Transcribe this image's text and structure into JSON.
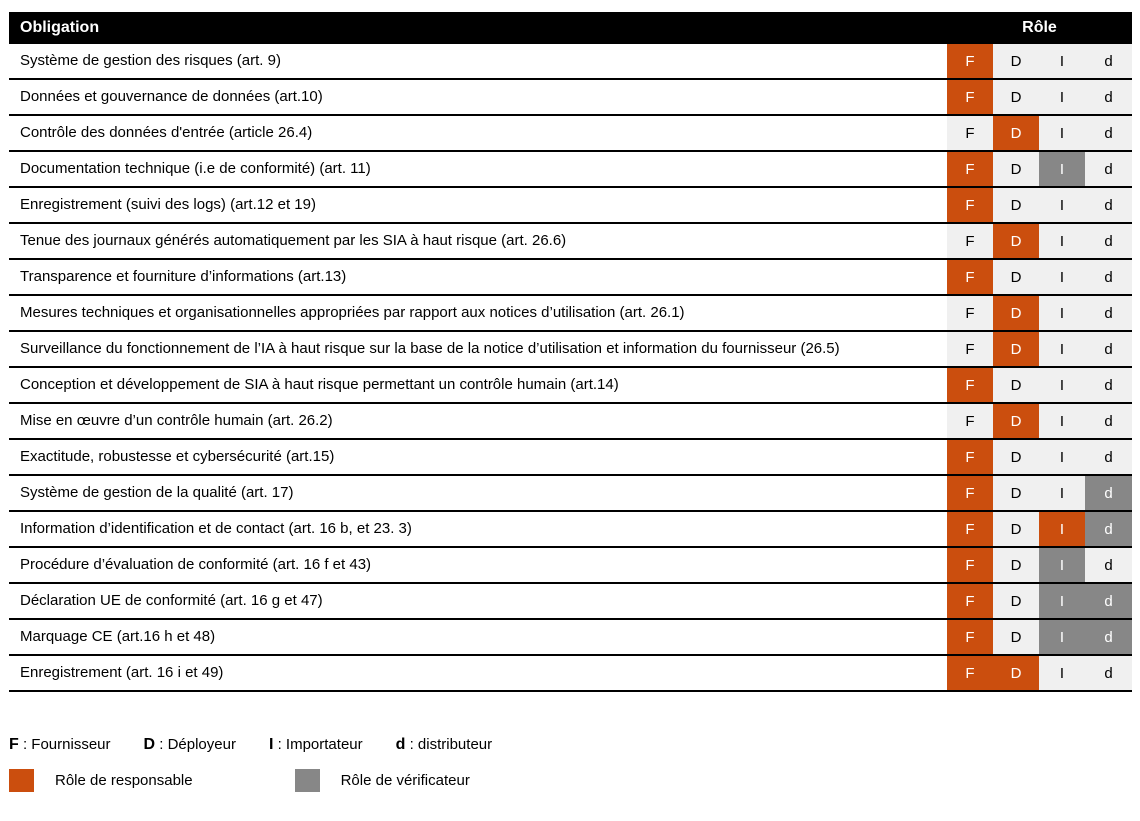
{
  "header": {
    "obligation": "Obligation",
    "role": "Rôle"
  },
  "columns": [
    "F",
    "D",
    "I",
    "d"
  ],
  "rows": [
    {
      "obligation": "Système de gestion des risques (art. 9)",
      "cells": [
        "resp",
        "none",
        "none",
        "none"
      ]
    },
    {
      "obligation": "Données et gouvernance de données  (art.10)",
      "cells": [
        "resp",
        "none",
        "none",
        "none"
      ]
    },
    {
      "obligation": "Contrôle des données d'entrée (article 26.4)",
      "cells": [
        "none",
        "resp",
        "none",
        "none"
      ]
    },
    {
      "obligation": "Documentation technique (i.e de conformité) (art. 11)",
      "cells": [
        "resp",
        "none",
        "verif",
        "none"
      ]
    },
    {
      "obligation": "Enregistrement (suivi des logs) (art.12 et 19)",
      "cells": [
        "resp",
        "none",
        "none",
        "none"
      ]
    },
    {
      "obligation": "Tenue des journaux générés automatiquement par les SIA à haut risque (art. 26.6)",
      "cells": [
        "none",
        "resp",
        "none",
        "none"
      ]
    },
    {
      "obligation": "Transparence et fourniture d’informations (art.13)",
      "cells": [
        "resp",
        "none",
        "none",
        "none"
      ]
    },
    {
      "obligation": "Mesures techniques et organisationnelles appropriées par rapport aux notices d’utilisation (art. 26.1)",
      "cells": [
        "none",
        "resp",
        "none",
        "none"
      ]
    },
    {
      "obligation": "Surveillance du fonctionnement de l’IA à haut risque sur la base de la notice d’utilisation et information du fournisseur (26.5)",
      "cells": [
        "none",
        "resp",
        "none",
        "none"
      ]
    },
    {
      "obligation": "Conception et développement de SIA à haut risque permettant un contrôle humain (art.14)",
      "cells": [
        "resp",
        "none",
        "none",
        "none"
      ]
    },
    {
      "obligation": "Mise en œuvre d’un contrôle humain (art. 26.2)",
      "cells": [
        "none",
        "resp",
        "none",
        "none"
      ]
    },
    {
      "obligation": "Exactitude, robustesse et cybersécurité (art.15)",
      "cells": [
        "resp",
        "none",
        "none",
        "none"
      ]
    },
    {
      "obligation": "Système de gestion de la qualité (art. 17)",
      "cells": [
        "resp",
        "none",
        "none",
        "verif"
      ]
    },
    {
      "obligation": "Information d’identification et de contact (art. 16 b, et 23. 3)",
      "cells": [
        "resp",
        "none",
        "resp",
        "verif"
      ]
    },
    {
      "obligation": "Procédure d’évaluation de conformité (art. 16 f et 43)",
      "cells": [
        "resp",
        "none",
        "verif",
        "none"
      ]
    },
    {
      "obligation": "Déclaration UE de conformité (art. 16 g et 47)",
      "cells": [
        "resp",
        "none",
        "verif",
        "verif"
      ]
    },
    {
      "obligation": "Marquage CE (art.16 h et 48)",
      "cells": [
        "resp",
        "none",
        "verif",
        "verif"
      ]
    },
    {
      "obligation": "Enregistrement (art. 16 i et 49)",
      "cells": [
        "resp",
        "resp",
        "none",
        "none"
      ]
    }
  ],
  "legend": {
    "roles": [
      {
        "letter": "F",
        "name": "Fournisseur"
      },
      {
        "letter": "D",
        "name": "Déployeur"
      },
      {
        "letter": "I",
        "name": "Importateur"
      },
      {
        "letter": "d",
        "name": "distributeur"
      }
    ],
    "separator": " : ",
    "swatches": [
      {
        "type": "resp",
        "label": "Rôle de responsable"
      },
      {
        "type": "verif",
        "label": "Rôle de vérificateur"
      }
    ]
  },
  "colors": {
    "responsable": "#CB4E0E",
    "verificateur": "#878787",
    "cell_background": "#F0F0F0",
    "header_background": "#000000"
  }
}
